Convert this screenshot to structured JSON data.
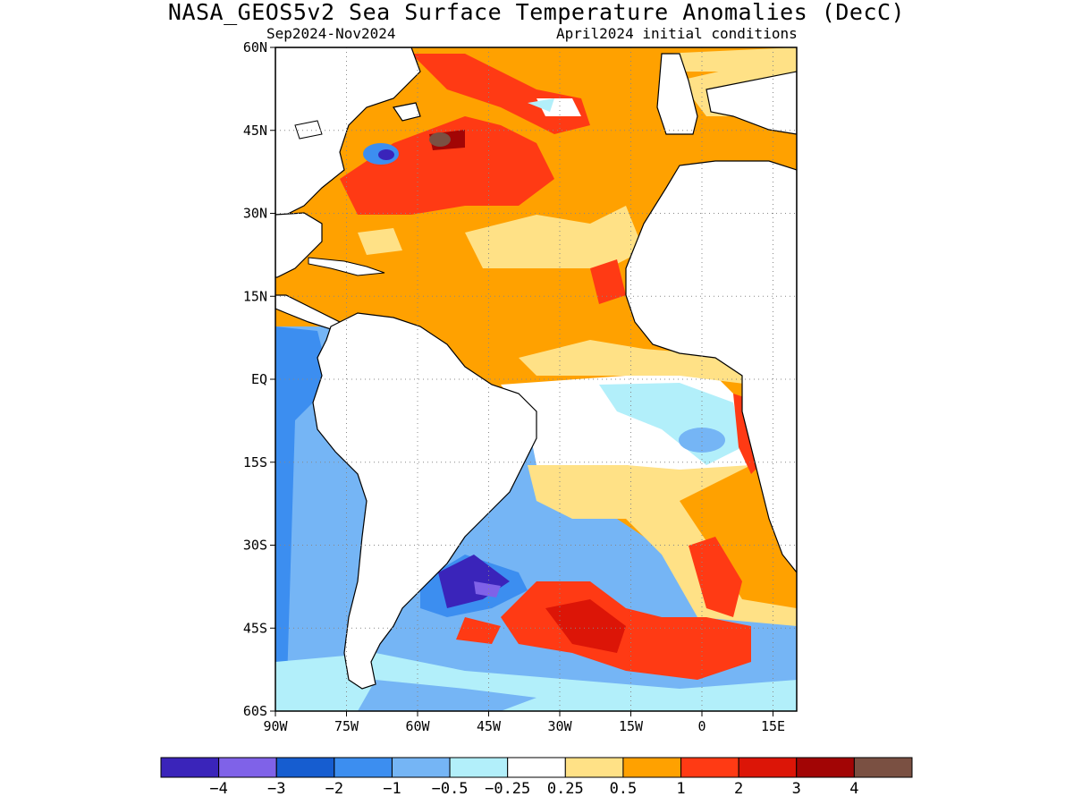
{
  "title": "NASA_GEOS5v2 Sea Surface Temperature Anomalies (DecC)",
  "subtitle_left": "Sep2024-Nov2024",
  "subtitle_right": "April2024 initial conditions",
  "map": {
    "lon_range": [
      -90,
      20
    ],
    "lat_range": [
      -60,
      60
    ],
    "lon_ticks": [
      {
        "lon": -90,
        "label": "90W"
      },
      {
        "lon": -75,
        "label": "75W"
      },
      {
        "lon": -60,
        "label": "60W"
      },
      {
        "lon": -45,
        "label": "45W"
      },
      {
        "lon": -30,
        "label": "30W"
      },
      {
        "lon": -15,
        "label": "15W"
      },
      {
        "lon": 0,
        "label": "0"
      },
      {
        "lon": 15,
        "label": "15E"
      }
    ],
    "lat_ticks": [
      {
        "lat": 60,
        "label": "60N"
      },
      {
        "lat": 45,
        "label": "45N"
      },
      {
        "lat": 30,
        "label": "30N"
      },
      {
        "lat": 15,
        "label": "15N"
      },
      {
        "lat": 0,
        "label": "EQ"
      },
      {
        "lat": -15,
        "label": "15S"
      },
      {
        "lat": -30,
        "label": "30S"
      },
      {
        "lat": -45,
        "label": "45S"
      },
      {
        "lat": -60,
        "label": "60S"
      }
    ],
    "grid": "dotted",
    "land_color": "#ffffff"
  },
  "colorbar": {
    "colors": [
      "#3a24ba",
      "#7f62e8",
      "#165dd0",
      "#3c8ef0",
      "#75b5f5",
      "#b2effa",
      "#ffffff",
      "#ffe186",
      "#ffa100",
      "#ff3a14",
      "#dc1507",
      "#a20505",
      "#7a5042"
    ],
    "labels": [
      "-4",
      "-3",
      "-2",
      "-1",
      "-0.5",
      "-0.25",
      "0.25",
      "0.5",
      "1",
      "2",
      "3",
      "4"
    ]
  }
}
